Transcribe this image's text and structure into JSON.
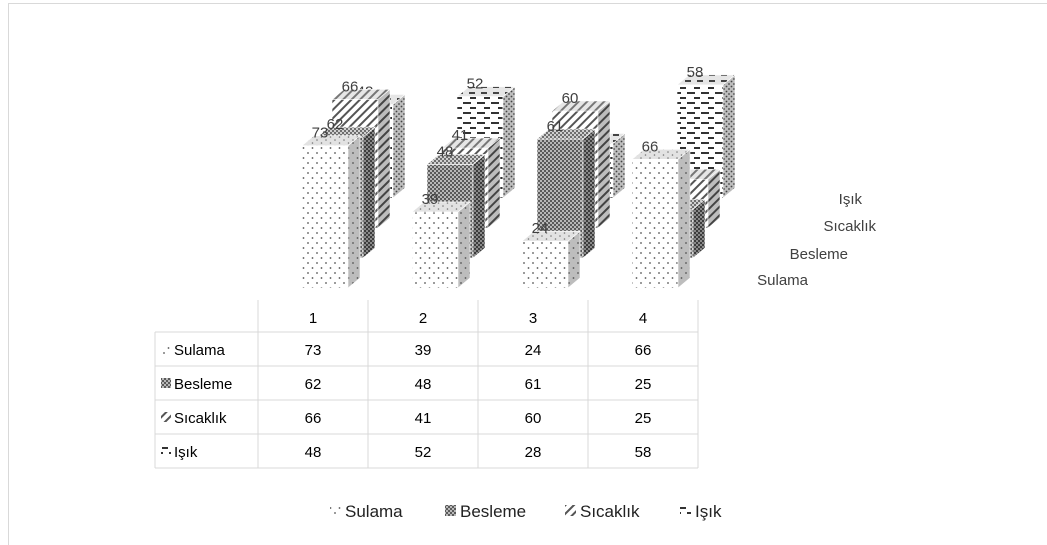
{
  "chart_data": {
    "type": "bar",
    "subtype": "3d-column-with-data-table",
    "categories": [
      "1",
      "2",
      "3",
      "4"
    ],
    "series": [
      {
        "name": "Sulama",
        "values": [
          73,
          39,
          24,
          66
        ],
        "pattern": "dots"
      },
      {
        "name": "Besleme",
        "values": [
          62,
          48,
          61,
          25
        ],
        "pattern": "checker"
      },
      {
        "name": "Sıcaklık",
        "values": [
          66,
          41,
          60,
          25
        ],
        "pattern": "diagonal"
      },
      {
        "name": "Işık",
        "values": [
          48,
          52,
          28,
          58
        ],
        "pattern": "dashes"
      }
    ],
    "ylim": [
      0,
      80
    ],
    "grid": false,
    "legend_position": "bottom",
    "data_table": true
  }
}
